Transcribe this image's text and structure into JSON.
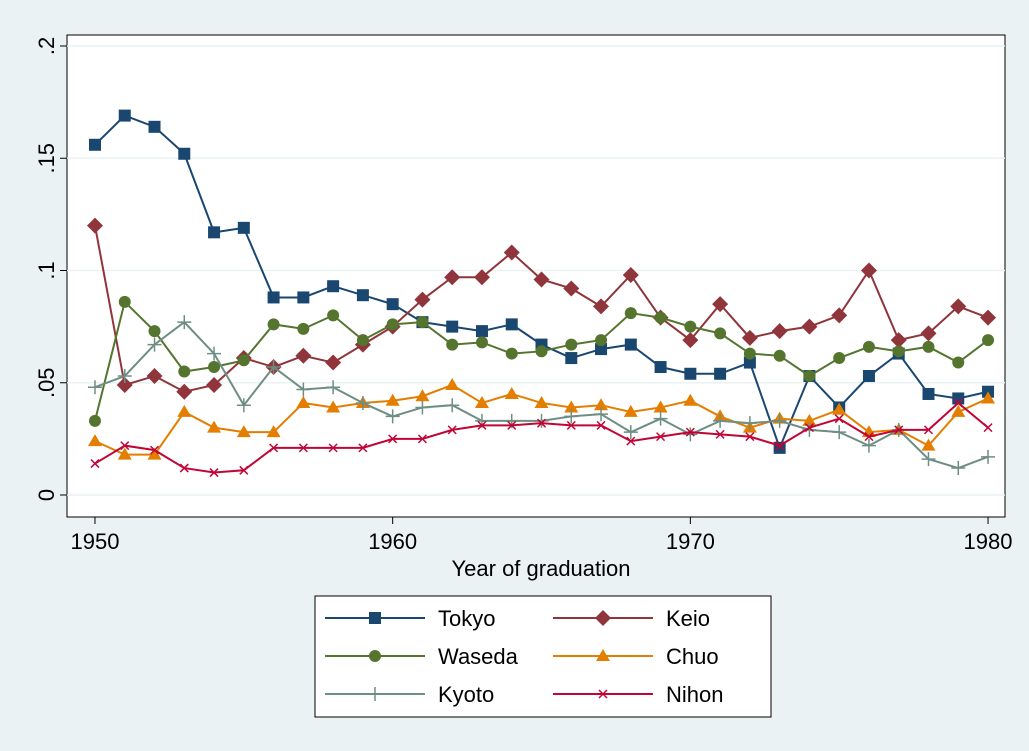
{
  "chart_data": {
    "type": "line",
    "x_label": "Year of graduation",
    "x": [
      1950,
      1951,
      1952,
      1953,
      1954,
      1955,
      1956,
      1957,
      1958,
      1959,
      1960,
      1961,
      1962,
      1963,
      1964,
      1965,
      1966,
      1967,
      1968,
      1969,
      1970,
      1971,
      1972,
      1973,
      1974,
      1975,
      1976,
      1977,
      1978,
      1979,
      1980
    ],
    "xlim": [
      1949.06,
      1980.57
    ],
    "xticks": [
      1950,
      1960,
      1970,
      1980
    ],
    "ylim": [
      -0.0098,
      0.2049
    ],
    "yticks": [
      0,
      {
        "value": 0.05,
        "label": ".05"
      },
      {
        "value": 0.1,
        "label": ".1"
      },
      {
        "value": 0.15,
        "label": ".15"
      },
      {
        "value": 0.2,
        "label": ".2"
      }
    ],
    "grid": true,
    "legend_position": "bottom",
    "series": [
      {
        "name": "Tokyo",
        "color": "#1a476f",
        "marker": "square",
        "values": [
          0.156,
          0.169,
          0.164,
          0.152,
          0.117,
          0.119,
          0.088,
          0.088,
          0.093,
          0.089,
          0.085,
          0.077,
          0.075,
          0.073,
          0.076,
          0.067,
          0.061,
          0.065,
          0.067,
          0.057,
          0.054,
          0.054,
          0.059,
          0.021,
          0.053,
          0.039,
          0.053,
          0.063,
          0.045,
          0.043,
          0.046
        ]
      },
      {
        "name": "Keio",
        "color": "#90353b",
        "marker": "diamond",
        "values": [
          0.12,
          0.049,
          0.053,
          0.046,
          0.049,
          0.061,
          0.057,
          0.062,
          0.059,
          0.067,
          0.075,
          0.087,
          0.097,
          0.097,
          0.108,
          0.096,
          0.092,
          0.084,
          0.098,
          0.079,
          0.069,
          0.085,
          0.07,
          0.073,
          0.075,
          0.08,
          0.1,
          0.069,
          0.072,
          0.084,
          0.079
        ]
      },
      {
        "name": "Waseda",
        "color": "#55752f",
        "marker": "circle",
        "values": [
          0.033,
          0.086,
          0.073,
          0.055,
          0.057,
          0.06,
          0.076,
          0.074,
          0.08,
          0.069,
          0.076,
          0.077,
          0.067,
          0.068,
          0.063,
          0.064,
          0.067,
          0.069,
          0.081,
          0.079,
          0.075,
          0.072,
          0.063,
          0.062,
          0.053,
          0.061,
          0.066,
          0.064,
          0.066,
          0.059,
          0.069
        ]
      },
      {
        "name": "Chuo",
        "color": "#e37e00",
        "marker": "triangle",
        "values": [
          0.024,
          0.018,
          0.018,
          0.037,
          0.03,
          0.028,
          0.028,
          0.041,
          0.039,
          0.041,
          0.042,
          0.044,
          0.049,
          0.041,
          0.045,
          0.041,
          0.039,
          0.04,
          0.037,
          0.039,
          0.042,
          0.035,
          0.03,
          0.034,
          0.033,
          0.038,
          0.028,
          0.029,
          0.022,
          0.037,
          0.043
        ]
      },
      {
        "name": "Kyoto",
        "color": "#6e8e84",
        "marker": "plus",
        "values": [
          0.048,
          0.053,
          0.067,
          0.077,
          0.063,
          0.04,
          0.057,
          0.047,
          0.048,
          0.041,
          0.035,
          0.039,
          0.04,
          0.033,
          0.033,
          0.033,
          0.035,
          0.036,
          0.028,
          0.034,
          0.027,
          0.033,
          0.032,
          0.033,
          0.029,
          0.028,
          0.022,
          0.029,
          0.016,
          0.012,
          0.017
        ]
      },
      {
        "name": "Nihon",
        "color": "#c10534",
        "marker": "x",
        "values": [
          0.014,
          0.022,
          0.02,
          0.012,
          0.01,
          0.011,
          0.021,
          0.021,
          0.021,
          0.021,
          0.025,
          0.025,
          0.029,
          0.031,
          0.031,
          0.032,
          0.031,
          0.031,
          0.024,
          0.026,
          0.028,
          0.027,
          0.026,
          0.022,
          0.03,
          0.034,
          0.026,
          0.029,
          0.029,
          0.041,
          0.03
        ]
      }
    ]
  }
}
